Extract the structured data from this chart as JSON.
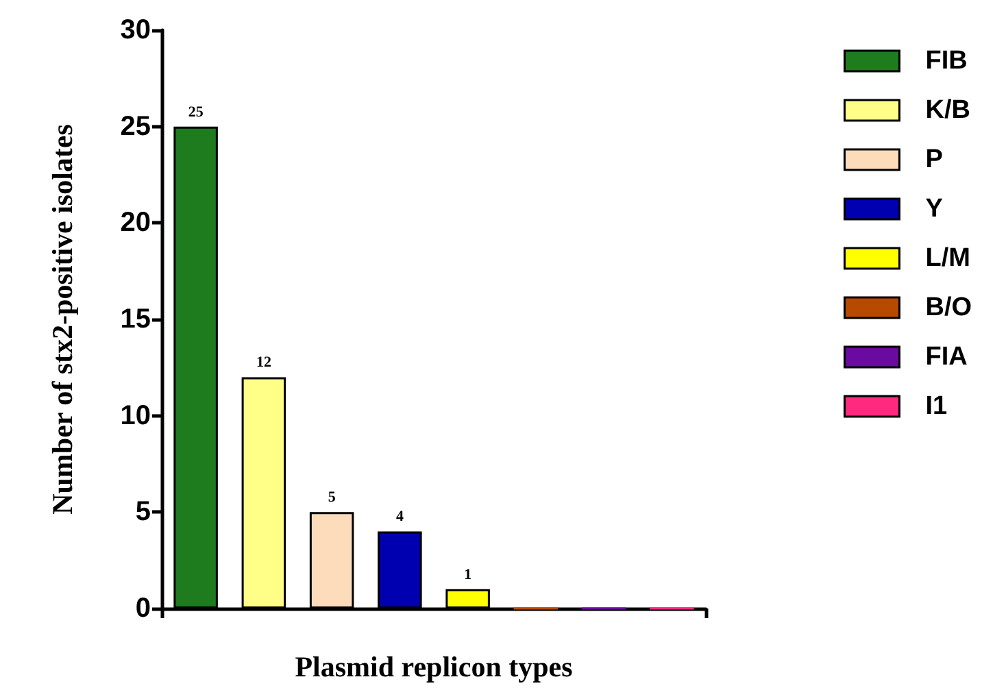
{
  "chart_data": {
    "type": "bar",
    "xlabel": "Plasmid replicon types",
    "ylabel": "Number of stx2-positive isolates",
    "categories": [
      null,
      null,
      null,
      null,
      null,
      null,
      null,
      null
    ],
    "stacked": true,
    "series": [
      {
        "name": "FIB",
        "color": "#1e7b1e",
        "values": [
          25,
          null,
          null,
          null,
          null,
          null,
          null,
          null
        ],
        "value_labels": [
          "25",
          null,
          null,
          null,
          null,
          null,
          null,
          null
        ]
      },
      {
        "name": "K/B",
        "color": "#ffff88",
        "values": [
          null,
          12,
          null,
          null,
          null,
          null,
          null,
          null
        ],
        "value_labels": [
          null,
          "12",
          null,
          null,
          null,
          null,
          null,
          null
        ]
      },
      {
        "name": "P",
        "color": "#fddcbc",
        "values": [
          null,
          null,
          5,
          null,
          null,
          null,
          null,
          null
        ],
        "value_labels": [
          null,
          null,
          "5",
          null,
          null,
          null,
          null,
          null
        ]
      },
      {
        "name": "Y",
        "color": "#0000b0",
        "values": [
          null,
          null,
          null,
          4,
          null,
          null,
          null,
          null
        ],
        "value_labels": [
          null,
          null,
          null,
          "4",
          null,
          null,
          null,
          null
        ]
      },
      {
        "name": "L/M",
        "color": "#ffff00",
        "values": [
          null,
          null,
          null,
          null,
          1,
          null,
          null,
          null
        ],
        "value_labels": [
          null,
          null,
          null,
          null,
          "1",
          null,
          null,
          null
        ]
      },
      {
        "name": "B/O",
        "color": "#b84a00",
        "values": [
          null,
          null,
          null,
          null,
          null,
          0,
          null,
          null
        ]
      },
      {
        "name": "FIA",
        "color": "#6a0aa0",
        "values": [
          null,
          null,
          null,
          null,
          null,
          null,
          0,
          null
        ]
      },
      {
        "name": "I1",
        "color": "#ff2a7f",
        "values": [
          null,
          null,
          null,
          null,
          null,
          null,
          null,
          0
        ]
      }
    ],
    "ylim": [
      0,
      30
    ],
    "yticks": [
      0,
      5,
      10,
      15,
      20,
      25,
      30
    ],
    "grid": false,
    "legend": "right"
  }
}
